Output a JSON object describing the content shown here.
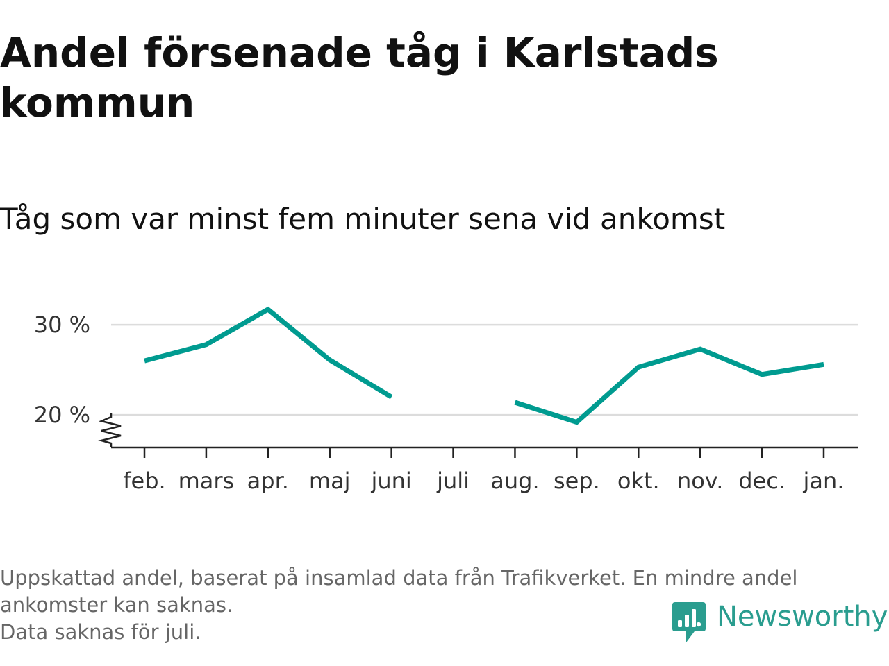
{
  "title": "Andel försenade tåg i Karlstads kommun",
  "subtitle": "Tåg som var minst fem minuter sena vid ankomst",
  "footnote": {
    "line1": "Uppskattad andel, baserat på insamlad data från Trafikverket. En mindre andel ankomster kan saknas.",
    "line2": "Data saknas för juli."
  },
  "brand": {
    "name": "Newsworthy",
    "icon": "newsworthy-logo-icon",
    "color": "#2a9d8f"
  },
  "chart_data": {
    "type": "line",
    "categories": [
      "feb.",
      "mars",
      "apr.",
      "maj",
      "juni",
      "juli",
      "aug.",
      "sep.",
      "okt.",
      "nov.",
      "dec.",
      "jan."
    ],
    "series": [
      {
        "values": [
          26.0,
          27.8,
          31.7,
          26.1,
          22.0,
          null,
          21.4,
          19.2,
          25.3,
          27.3,
          24.5,
          25.6
        ],
        "color": "#009b90"
      }
    ],
    "yticks": [
      20,
      30
    ],
    "ytick_labels": [
      "20 %",
      "30 %"
    ],
    "ylim": [
      16.4,
      33.7
    ],
    "axis_break": true,
    "grid": "horizontal",
    "xlabel": "",
    "ylabel": ""
  }
}
